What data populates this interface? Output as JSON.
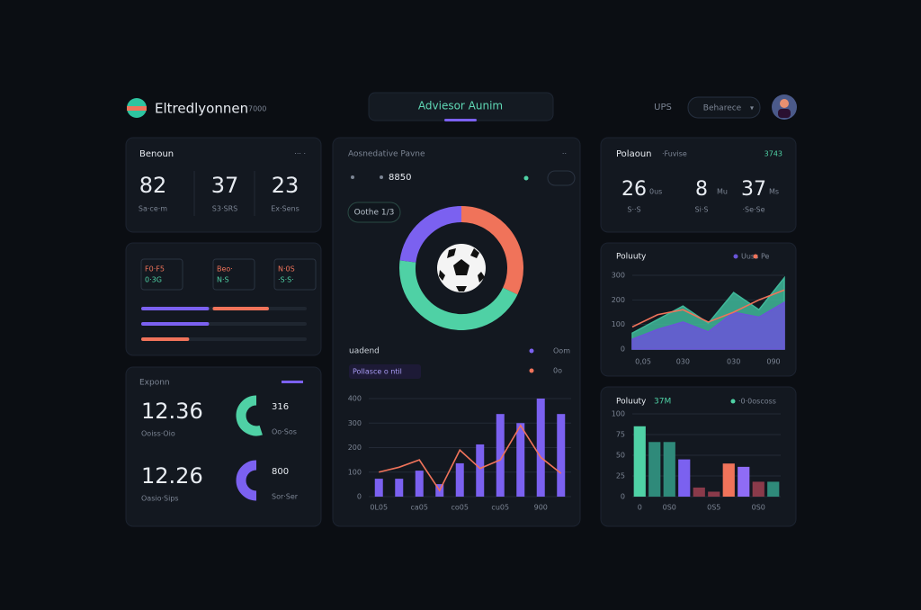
{
  "header": {
    "brand": "Eltredlyonnen",
    "brand_note": "7000",
    "tab": "Adviesor Aunim",
    "region": "UPS",
    "dropdown": "Beharece"
  },
  "stats_left": {
    "title": "Benoun",
    "more": "··· ·",
    "items": [
      {
        "value": 82,
        "label": "Sa·ce·m"
      },
      {
        "value": 37,
        "label": "S3·SRS"
      },
      {
        "value": 23,
        "label": "Ex·Sens"
      }
    ]
  },
  "progress": {
    "boxes": [
      {
        "title": "F0·F5",
        "sub": "0·3G"
      },
      {
        "title": "Beo·",
        "sub": "N·S"
      },
      {
        "title": "N·0S",
        "sub": "·S·S·"
      }
    ],
    "rows": [
      [
        {
          "value": 41,
          "color": "#7b61f0"
        },
        {
          "value": 34,
          "color": "#f0735a"
        }
      ],
      [
        {
          "value": 41,
          "color": "#7b61f0"
        }
      ],
      [
        {
          "value": 29,
          "color": "#f0735a"
        }
      ]
    ]
  },
  "metrics": {
    "title": "Exponn",
    "items": [
      {
        "value": 12.36,
        "label": "Ooiss·Oio",
        "ring": 55,
        "ring_label": 316,
        "ring_sub": "Oo·Sos",
        "color": "#4fd1a5"
      },
      {
        "value": 12.26,
        "label": "Oasio·Sips",
        "ring": 50,
        "ring_label": 800,
        "ring_sub": "Sor·Ser",
        "color": "#7b61f0"
      }
    ]
  },
  "center": {
    "title": "Aosnedative Pavne",
    "subtitle": "8850",
    "menu": "··",
    "filter": "Oothe 1/3",
    "donut": {
      "values": [
        32,
        45,
        23
      ],
      "colors": [
        "#f0735a",
        "#4fd1a5",
        "#7b61f0"
      ]
    },
    "chart": {
      "type": "bar",
      "title": "uadend",
      "subtitle": "Pollasce o ntil",
      "categories": [
        "0L05",
        null,
        "ca05",
        null,
        "co05",
        null,
        "cu05",
        null,
        "900",
        null
      ],
      "series": [
        {
          "name": "Oom",
          "color": "#7b61f0",
          "values": [
            73,
            73,
            106,
            51,
            136,
            213,
            337,
            300,
            400,
            337
          ]
        },
        {
          "name": "0o",
          "color": "#f0735a",
          "type": "line",
          "values": [
            100,
            120,
            150,
            25,
            190,
            115,
            150,
            290,
            160,
            95
          ]
        }
      ],
      "ylim": [
        0,
        400
      ],
      "yticks": [
        0,
        100,
        200,
        300,
        400
      ]
    }
  },
  "stats_right": {
    "title": "Polaoun",
    "tag": "·Fuvise",
    "note": "3743",
    "items": [
      {
        "value": 26,
        "unit": "0us",
        "label": "S··S"
      },
      {
        "value": 8,
        "unit": "Mu",
        "label": "Si·S"
      },
      {
        "value": 37,
        "unit": "Ms",
        "label": "·Se·Se"
      }
    ]
  },
  "area": {
    "type": "area",
    "title": "Poluuty",
    "categories": [
      "0,05",
      null,
      "030",
      null,
      "030",
      null,
      "090"
    ],
    "series": [
      {
        "color": "#3fb89a",
        "values": [
          65,
          120,
          175,
          105,
          230,
          160,
          290
        ]
      },
      {
        "name": "Uuss",
        "color": "#6a55d8",
        "values": [
          40,
          80,
          110,
          70,
          150,
          130,
          190
        ]
      },
      {
        "name": "Pe",
        "color": "#f0735a",
        "type": "line",
        "values": [
          90,
          140,
          160,
          110,
          150,
          200,
          240
        ]
      }
    ],
    "ylim": [
      0,
      300
    ],
    "yticks": [
      0,
      100,
      200,
      300
    ]
  },
  "bars": {
    "type": "bar",
    "title": "Poluuty",
    "title_note": "37M",
    "legend": "·0·0oscoss",
    "categories": [
      "0",
      null,
      "0S0",
      null,
      null,
      "0S5",
      null,
      null,
      "0S0",
      null
    ],
    "values": [
      85,
      66,
      66,
      45,
      11,
      6,
      40,
      36,
      18,
      18
    ],
    "colors": [
      "#4fd1a5",
      "#2f8a7a",
      "#2f8a7a",
      "#7b61f0",
      "#8a3a4a",
      "#8a3a4a",
      "#f0735a",
      "#8f6cf5",
      "#8a3a4a",
      "#2f8a7a"
    ],
    "ylim": [
      0,
      100
    ],
    "yticks": [
      0,
      25,
      50,
      75,
      100
    ]
  }
}
